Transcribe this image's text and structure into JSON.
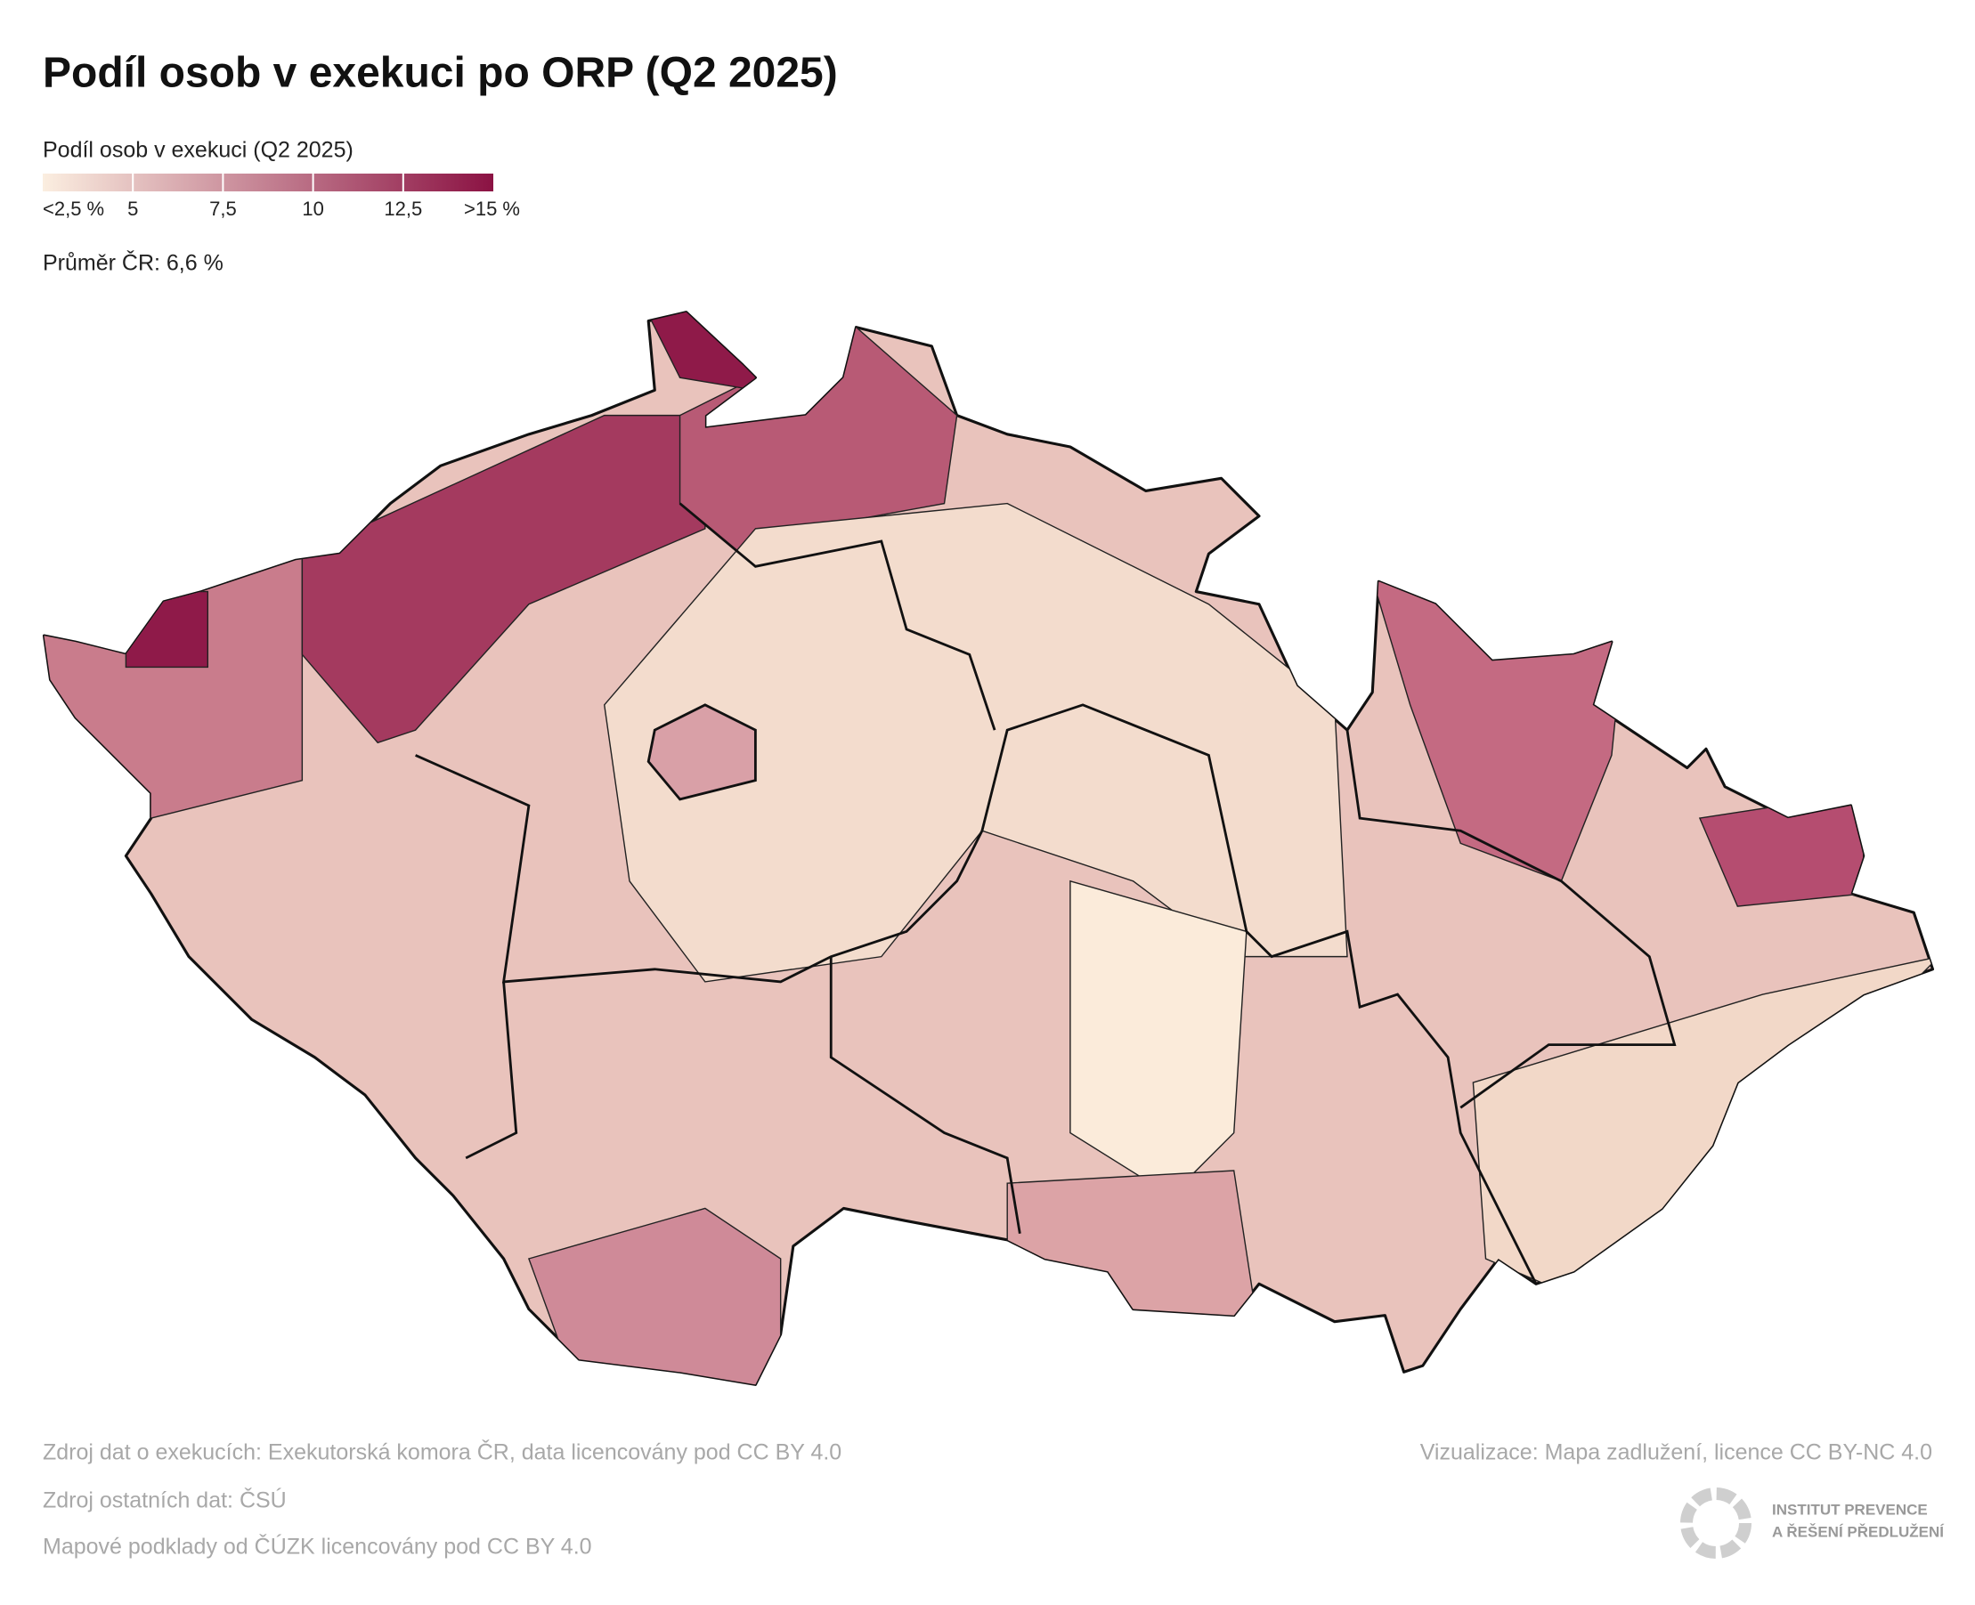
{
  "title": "Podíl osob v exekuci po ORP (Q2 2025)",
  "legend": {
    "title": "Podíl osob v exekuci (Q2 2025)",
    "range": [
      2.5,
      15
    ],
    "colors": [
      "#fbeee0",
      "#8b1243"
    ],
    "ticks": [
      {
        "value": 2.5,
        "label": "<2,5 %"
      },
      5,
      {
        "value": 7.5,
        "label": "7,5"
      },
      10,
      {
        "value": 12.5,
        "label": "12,5"
      },
      {
        "value": 15,
        "label": ">15 %"
      }
    ]
  },
  "average": "Průměr ČR: 6,6 %",
  "footer": {
    "left": [
      "Zdroj dat o exekucích: Exekutorská komora ČR, data licencovány pod CC BY 4.0",
      "Zdroj ostatních dat: ČSÚ",
      "Mapové podklady od ČÚZK licencovány pod CC BY 4.0"
    ],
    "right": "Vizualizace: Mapa zadlužení, licence CC BY-NC 4.0",
    "logo": [
      "INSTITUT PREVENCE",
      "A ŘEŠENÍ PŘEDLUŽENÍ"
    ]
  }
}
